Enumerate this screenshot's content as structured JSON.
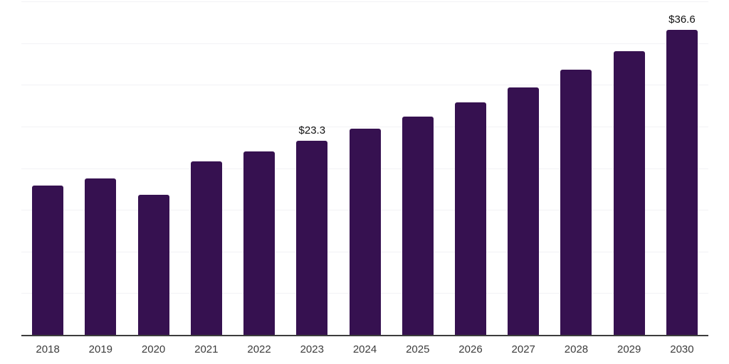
{
  "chart_data": {
    "type": "bar",
    "categories": [
      "2018",
      "2019",
      "2020",
      "2021",
      "2022",
      "2023",
      "2024",
      "2025",
      "2026",
      "2027",
      "2028",
      "2029",
      "2030"
    ],
    "values": [
      17.9,
      18.8,
      16.8,
      20.8,
      22.0,
      23.3,
      24.7,
      26.2,
      27.9,
      29.7,
      31.8,
      34.0,
      36.6
    ],
    "point_labels": [
      "",
      "",
      "",
      "",
      "",
      "$23.3",
      "",
      "",
      "",
      "",
      "",
      "",
      "$36.6"
    ],
    "title": "",
    "xlabel": "",
    "ylabel": "",
    "ylim": [
      0,
      40
    ],
    "gridline_step": 5,
    "grid": true,
    "legend_position": "none",
    "colors": {
      "bar": "#361150",
      "gridline": "#f2f2f5",
      "axis_line": "#3d3d3d",
      "tick_label": "#3c3c3c",
      "data_label": "#111111",
      "background": "#ffffff"
    }
  }
}
